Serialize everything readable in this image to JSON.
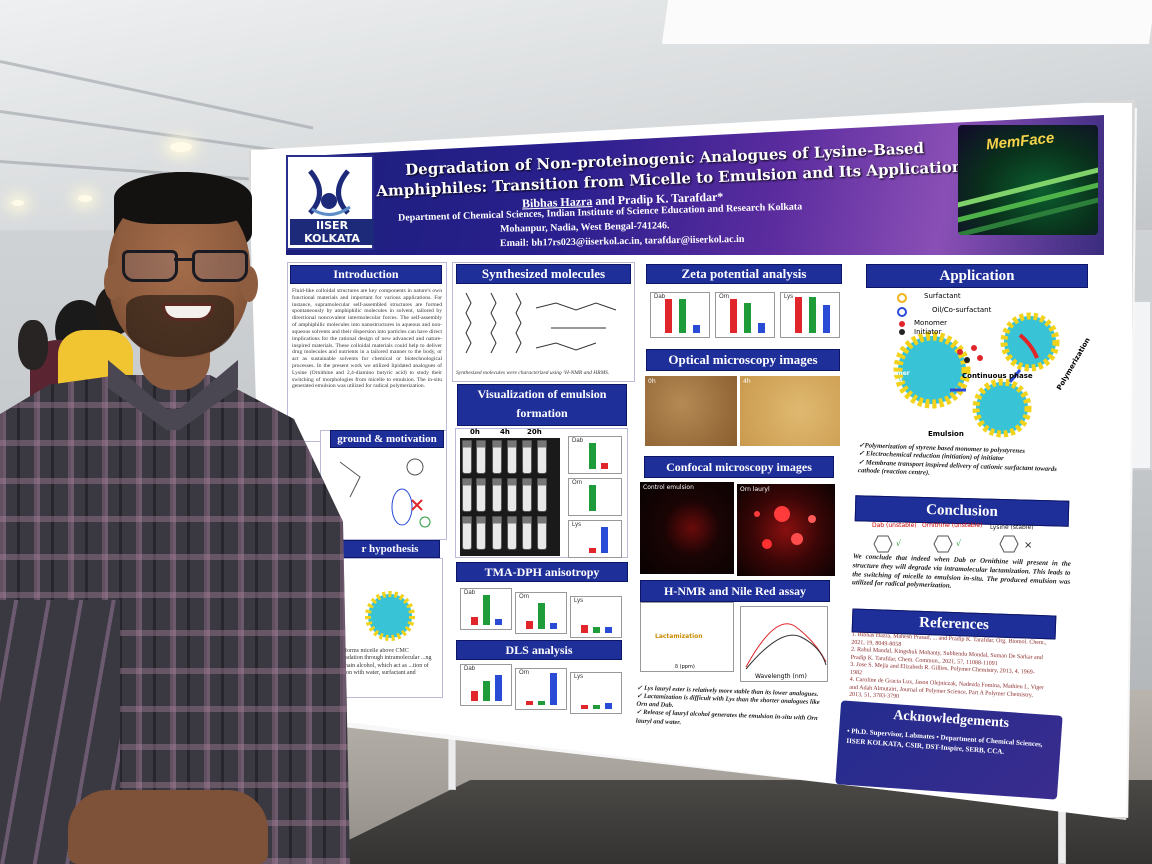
{
  "poster": {
    "title_line1": "Degradation of Non-proteinogenic Analogues of Lysine-Based",
    "title_line2": "Amphiphiles: Transition from Micelle to Emulsion and Its Application",
    "authors_first": "Bibhas Hazra",
    "authors_rest": " and Pradip K. Tarafdar*",
    "affiliation_line1": "Department of Chemical Sciences, Indian Institute of Science Education and Research Kolkata",
    "affiliation_line2": "Mohanpur, Nadia, West Bengal-741246.",
    "email_label": "Email:",
    "email_value": "bh17rs023@iiserkol.ac.in, tarafdar@iiserkol.ac.in",
    "logo_text": "IISER KOLKATA",
    "corner_label": "MemFace",
    "sections": {
      "introduction": "Introduction",
      "synthesized": "Synthesized molecules",
      "zeta": "Zeta potential analysis",
      "application": "Application",
      "optical": "Optical microscopy images",
      "visualization_line1": "Visualization of emulsion",
      "visualization_line2": "formation",
      "background": "ground & motivation",
      "confocal": "Confocal microscopy images",
      "hypothesis": "r hypothesis",
      "tma": "TMA-DPH anisotropy",
      "nmr": "H-NMR and Nile Red assay",
      "dls": "DLS analysis",
      "conclusion": "Conclusion",
      "references": "References",
      "ack": "Acknowledgements"
    },
    "intro_text": "Fluid-like colloidal structures are key components in nature's own functional materials and important for various applications. For instance, supramolecular self-assembled structures are formed spontaneously by amphiphilic molecules in solvent, tailored by directional noncovalent intermolecular forces. The self-assembly of amphiphilic molecules into nanostructures in aqueous and non-aqueous solvents and their dispersion into particles can have direct implications for the rational design of new advanced and nature-inspired materials. These colloidal materials could help to deliver drug molecules and nutrients in a tailored manner to the body, or act as sustainable solvents for chemical or biotechnological processes. In the present work we utilized lipidated analogues of Lysine (Ornithine and 2,4-diamino butyric acid) to study their switching of morphologies from micelle to emulsion. The in-situ generated emulsion was utilized for radical polymerization.",
    "synth_caption": "Synthesized molecules were characterized using ¹H-NMR and HRMS.",
    "vial_times": [
      "0h",
      "4h",
      "20h"
    ],
    "chart_labels": [
      "Dab",
      "Orn",
      "Lys"
    ],
    "application_legend": [
      "Surfactant",
      "Oil/Co-surfactant",
      "Monomer",
      "Initiator"
    ],
    "application_labels": {
      "monomer_droplet": "Monomer droplet",
      "continuous_phase": "Continuous phase",
      "emulsion": "Emulsion",
      "polymerization": "Polymerization"
    },
    "application_bullets": [
      "✓Polymerization of styrene based monomer to polystyrenes",
      "✓ Electrochemical reduction (initiation) of initiator",
      "✓ Membrane transport inspired delivery of cationic surfactant towards cathode (reaction centre)."
    ],
    "conclusion_labels": [
      "Dab (unstable)",
      "Ornithine (unstable)",
      "Lysine (stable)"
    ],
    "conclusion_text": "We conclude that indeed when Dab or Ornithine will present in the structure they will degrade via intramolecular lactamization. This leads to the switching of micelle to emulsion in-situ. The produced emulsion was utilized for radical polymerization.",
    "references": [
      "1. Bibhas Hazra, Mahesh Prasad, ... and Pradip K. Tarafdar, Org. Biomol. Chem., 2021, 19, 8049-8058",
      "2. Rahul Mandal, Kingshuk Mohanty, Subhendu Mondal, Suman De Sarkar and Pradip K. Tarafdar, Chem. Commun., 2021, 57, 11088-11091",
      "3. Jose S. Mejia and Elizabeth R. Gillies, Polymer Chemistry, 2013, 4, 1969-1982",
      "4. Caroline de Gracia Lux, Jason Olejniczak, Nadezda Fomina, Mathieu L. Viger and Adah Almutairi, Journal of Polymer Science, Part A Polymer Chemistry, 2013, 51, 3783-3790"
    ],
    "ack_text": "• Ph.D. Supervisor, Labmates • Department of Chemical Sciences, IISER KOLKATA, CSIR, DST-Inspire, SERB, CCA.",
    "nmr_bullets": [
      "✓ Lys lauryl ester is relatively more stable than its lower analogues.",
      "✓ Lactamization is difficult with Lys than the shorter analogues like Orn and Dab.",
      "✓ Release of lauryl alcohol generates the emulsion in-situ with Orn lauryl and water."
    ],
    "nmr_labels": {
      "lactamization": "Lactamization",
      "wavelength": "Wavelength (nm)",
      "ppm": "δ (ppm)"
    },
    "confocal_labels": [
      "Control emulsion",
      "Orn lauryl"
    ],
    "optical_labels": [
      "0h",
      "4h"
    ],
    "hypothesis_text": "...tant forms micelle above CMC ...degradation through intramolecular ...ng long chain alcohol, which act as ...tion of emulsion with water, surfactant and"
  },
  "colors": {
    "header_blue": "#1f2f9a",
    "bar_red": "#e0262b",
    "bar_green": "#1e9c3a",
    "bar_blue": "#2a4bd6"
  }
}
